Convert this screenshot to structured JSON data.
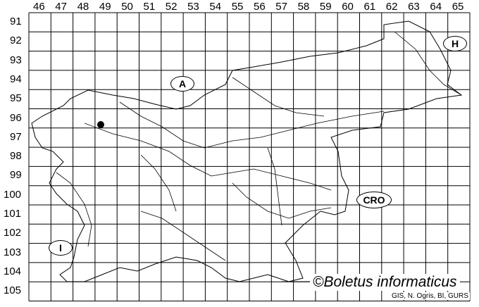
{
  "map": {
    "columns": [
      "46",
      "47",
      "48",
      "49",
      "50",
      "51",
      "52",
      "53",
      "54",
      "55",
      "56",
      "57",
      "58",
      "59",
      "60",
      "61",
      "62",
      "63",
      "64",
      "65"
    ],
    "rows": [
      "91",
      "92",
      "93",
      "94",
      "95",
      "96",
      "97",
      "98",
      "99",
      "100",
      "101",
      "102",
      "103",
      "104",
      "105"
    ],
    "country_labels": {
      "austria": "A",
      "hungary": "H",
      "croatia": "CRO",
      "italy": "I"
    },
    "records": [
      {
        "column": "49",
        "row": "96"
      }
    ],
    "credit": "©Boletus informaticus",
    "source": "GIS, N. Ogris, BI, GURS",
    "line_color": "#000000",
    "marker_color": "#000000"
  }
}
